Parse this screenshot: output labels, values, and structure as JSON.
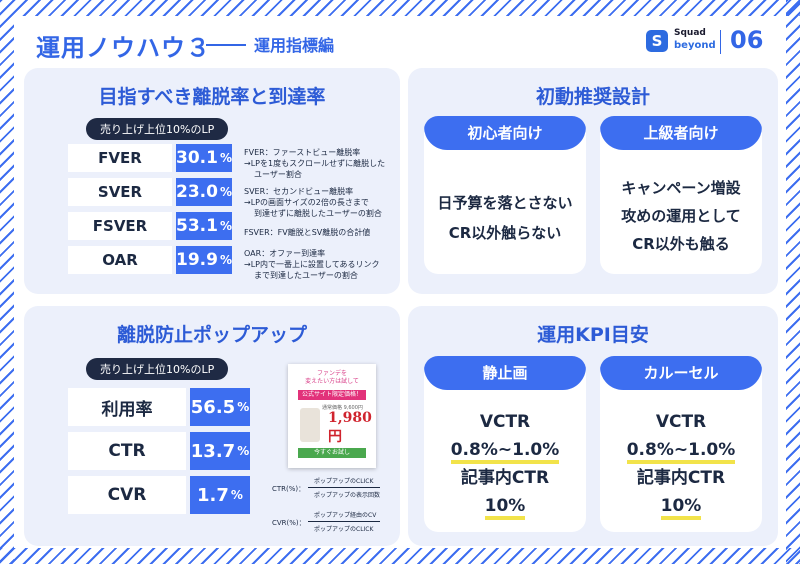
{
  "header": {
    "title": "運用ノウハウ３",
    "subtitle": "運用指標編",
    "logo_line1": "Squad",
    "logo_line2": "beyond",
    "page_number": "06"
  },
  "exit_rates": {
    "title": "目指すべき離脱率と到達率",
    "tag": "売り上げ上位10%のLP",
    "rows": [
      {
        "label": "FVER",
        "value": "30.1",
        "unit": "%"
      },
      {
        "label": "SVER",
        "value": "23.0",
        "unit": "%"
      },
      {
        "label": "FSVER",
        "value": "53.1",
        "unit": "%"
      },
      {
        "label": "OAR",
        "value": "19.9",
        "unit": "%"
      }
    ],
    "definitions": [
      {
        "line1": "FVER：ファーストビュー離脱率",
        "line2": "→LPを1度もスクロールせずに離脱した",
        "line3": "ユーザー割合"
      },
      {
        "line1": "SVER：セカンドビュー離脱率",
        "line2": "→LPの画面サイズの2倍の長さまで",
        "line3": "到達せずに離脱したユーザーの割合"
      },
      {
        "line1": "FSVER：FV離脱とSV離脱の合計値",
        "line2": "",
        "line3": ""
      },
      {
        "line1": "OAR：オファー到達率",
        "line2": "→LP内で一番上に設置してあるリンク",
        "line3": "まで到達したユーザーの割合"
      }
    ]
  },
  "initial_design": {
    "title": "初動推奨設計",
    "cards": [
      {
        "header": "初心者向け",
        "line1": "日予算を落とさない",
        "line2": "CR以外触らない",
        "line3": ""
      },
      {
        "header": "上級者向け",
        "line1": "キャンペーン増設",
        "line2": "攻めの運用として",
        "line3": "CR以外も触る"
      }
    ]
  },
  "popup": {
    "title": "離脱防止ポップアップ",
    "tag": "売り上げ上位10%のLP",
    "rows": [
      {
        "label": "利用率",
        "value": "56.5",
        "unit": "%"
      },
      {
        "label": "CTR",
        "value": "13.7",
        "unit": "%"
      },
      {
        "label": "CVR",
        "value": "1.7",
        "unit": "%"
      }
    ],
    "image": {
      "text1": "ファンデを",
      "text2": "変えたい方は試して",
      "banner": "公式サイト限定価格！",
      "original": "通常価格 9,600円",
      "price": "1,980円",
      "button": "今すぐお試し"
    },
    "ctr_formula": {
      "label": "CTR(%)：",
      "numerator": "ポップアップのCLICK",
      "denominator": "ポップアップの表示回数"
    },
    "cvr_formula": {
      "label": "CVR(%)：",
      "numerator": "ポップアップ経由のCV",
      "denominator": "ポップアップのCLICK"
    }
  },
  "kpi": {
    "title": "運用KPI目安",
    "cards": [
      {
        "header": "静止画",
        "metric1": "VCTR",
        "range": "0.8%~1.0%",
        "metric2": "記事内CTR",
        "value": "10%"
      },
      {
        "header": "カルーセル",
        "metric1": "VCTR",
        "range": "0.8%~1.0%",
        "metric2": "記事内CTR",
        "value": "10%"
      }
    ]
  },
  "colors": {
    "accent": "#3d6ef0",
    "title_blue": "#2d5bd6",
    "dark": "#1c2942",
    "panel": "#ecf0fb",
    "highlight": "#f2e34a"
  }
}
